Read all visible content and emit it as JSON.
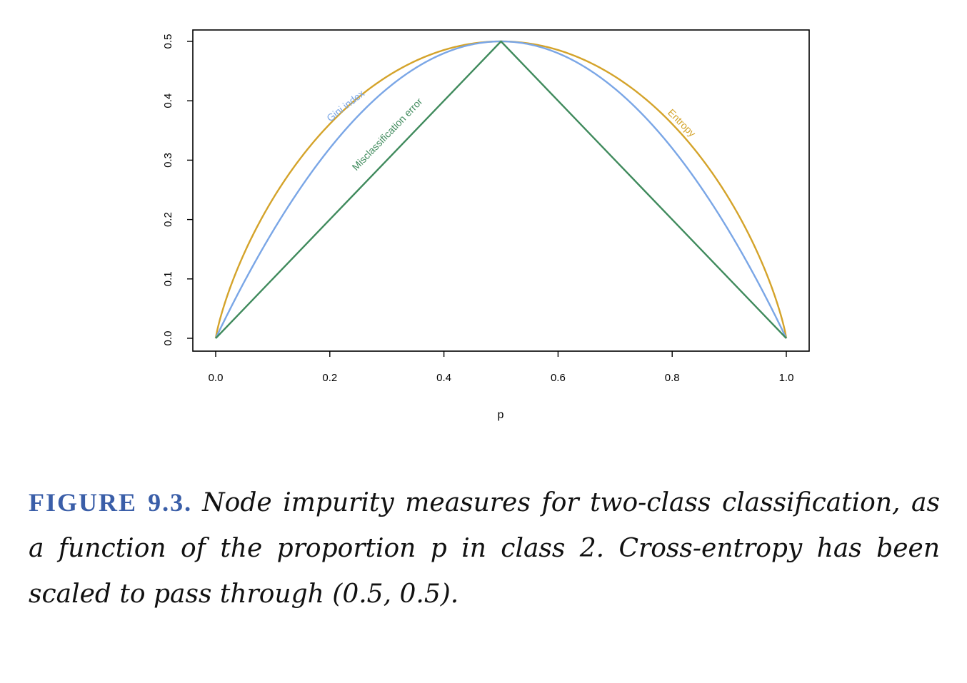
{
  "chart_data": {
    "type": "line",
    "xlabel": "p",
    "ylabel": "",
    "xlim": [
      0.0,
      1.0
    ],
    "ylim": [
      0.0,
      0.5
    ],
    "xticks": [
      "0.0",
      "0.2",
      "0.4",
      "0.6",
      "0.8",
      "1.0"
    ],
    "yticks": [
      "0.0",
      "0.1",
      "0.2",
      "0.3",
      "0.4",
      "0.5"
    ],
    "grid": false,
    "x": [
      0.0,
      0.05,
      0.1,
      0.15,
      0.2,
      0.25,
      0.3,
      0.35,
      0.4,
      0.45,
      0.5,
      0.55,
      0.6,
      0.65,
      0.7,
      0.75,
      0.8,
      0.85,
      0.9,
      0.95,
      1.0
    ],
    "series": [
      {
        "name": "Entropy",
        "color": "#d4a32a",
        "values": [
          0.0,
          0.143,
          0.234,
          0.305,
          0.361,
          0.406,
          0.441,
          0.467,
          0.486,
          0.496,
          0.5,
          0.496,
          0.486,
          0.467,
          0.441,
          0.406,
          0.361,
          0.305,
          0.234,
          0.143,
          0.0
        ]
      },
      {
        "name": "Gini index",
        "color": "#7aa6e6",
        "values": [
          0.0,
          0.095,
          0.18,
          0.255,
          0.32,
          0.375,
          0.42,
          0.455,
          0.48,
          0.495,
          0.5,
          0.495,
          0.48,
          0.455,
          0.42,
          0.375,
          0.32,
          0.255,
          0.18,
          0.095,
          0.0
        ]
      },
      {
        "name": "Misclassification error",
        "color": "#3f8a5c",
        "values": [
          0.0,
          0.05,
          0.1,
          0.15,
          0.2,
          0.25,
          0.3,
          0.35,
          0.4,
          0.45,
          0.5,
          0.45,
          0.4,
          0.35,
          0.3,
          0.25,
          0.2,
          0.15,
          0.1,
          0.05,
          0.0
        ]
      }
    ],
    "annotations": [
      {
        "text": "Entropy",
        "series": "Entropy",
        "at_x": 0.8,
        "angle": 45
      },
      {
        "text": "Gini index",
        "series": "Gini index",
        "at_x": 0.25,
        "angle": -38
      },
      {
        "text": "Misclassification error",
        "series": "Misclassification error",
        "at_x": 0.33,
        "angle": -46
      }
    ]
  },
  "caption": {
    "label": "FIGURE 9.3.",
    "text": "Node impurity measures for two-class classification, as a function of the proportion p in class 2. Cross-entropy has been scaled to pass through (0.5, 0.5)."
  }
}
